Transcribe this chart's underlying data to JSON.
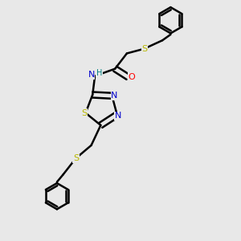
{
  "background_color": "#e8e8e8",
  "bond_color": "#000000",
  "S_color": "#b8b800",
  "N_color": "#0000cc",
  "O_color": "#ff0000",
  "H_color": "#008080",
  "line_width": 1.8,
  "figsize": [
    3.0,
    3.0
  ],
  "dpi": 100,
  "xlim": [
    0,
    10
  ],
  "ylim": [
    0,
    10
  ]
}
